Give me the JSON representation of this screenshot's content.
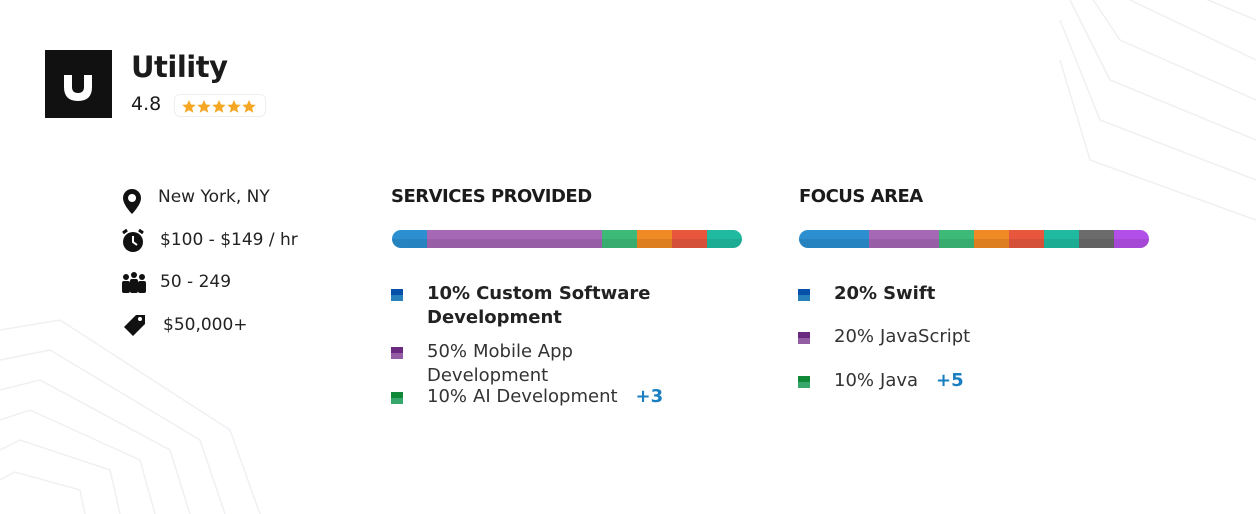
{
  "header": {
    "logo_letter": "U",
    "name": "Utility",
    "rating": "4.8"
  },
  "info": [
    "New York, NY",
    "$100 - $149 / hr",
    "50 - 249",
    "$50,000+"
  ],
  "services": {
    "title": "SERVICES PROVIDED",
    "segments": [
      {
        "value": 10,
        "color": "#2b8fd0",
        "label": "10%",
        "name": "Custom Software Development"
      },
      {
        "value": 50,
        "color": "#a468b5",
        "label": "50%",
        "name": "Mobile App Development"
      },
      {
        "value": 10,
        "color": "#3dba78",
        "label": "10%",
        "name": "AI Development"
      },
      {
        "value": 10,
        "color": "#f08a24"
      },
      {
        "value": 10,
        "color": "#e8573d"
      },
      {
        "value": 10,
        "color": "#1fbaa0"
      }
    ],
    "more": "+3"
  },
  "focus": {
    "title": "FOCUS AREA",
    "segments": [
      {
        "value": 20,
        "color": "#2b8fd0",
        "label": "20%",
        "name": "Swift"
      },
      {
        "value": 20,
        "color": "#a468b5",
        "label": "20%",
        "name": "JavaScript"
      },
      {
        "value": 10,
        "color": "#3dba78",
        "label": "10%",
        "name": "Java"
      },
      {
        "value": 10,
        "color": "#f08a24"
      },
      {
        "value": 10,
        "color": "#e8573d"
      },
      {
        "value": 10,
        "color": "#1fbaa0"
      },
      {
        "value": 10,
        "color": "#6b6b6b"
      },
      {
        "value": 10,
        "color": "#b24fe8"
      }
    ],
    "more": "+5"
  }
}
